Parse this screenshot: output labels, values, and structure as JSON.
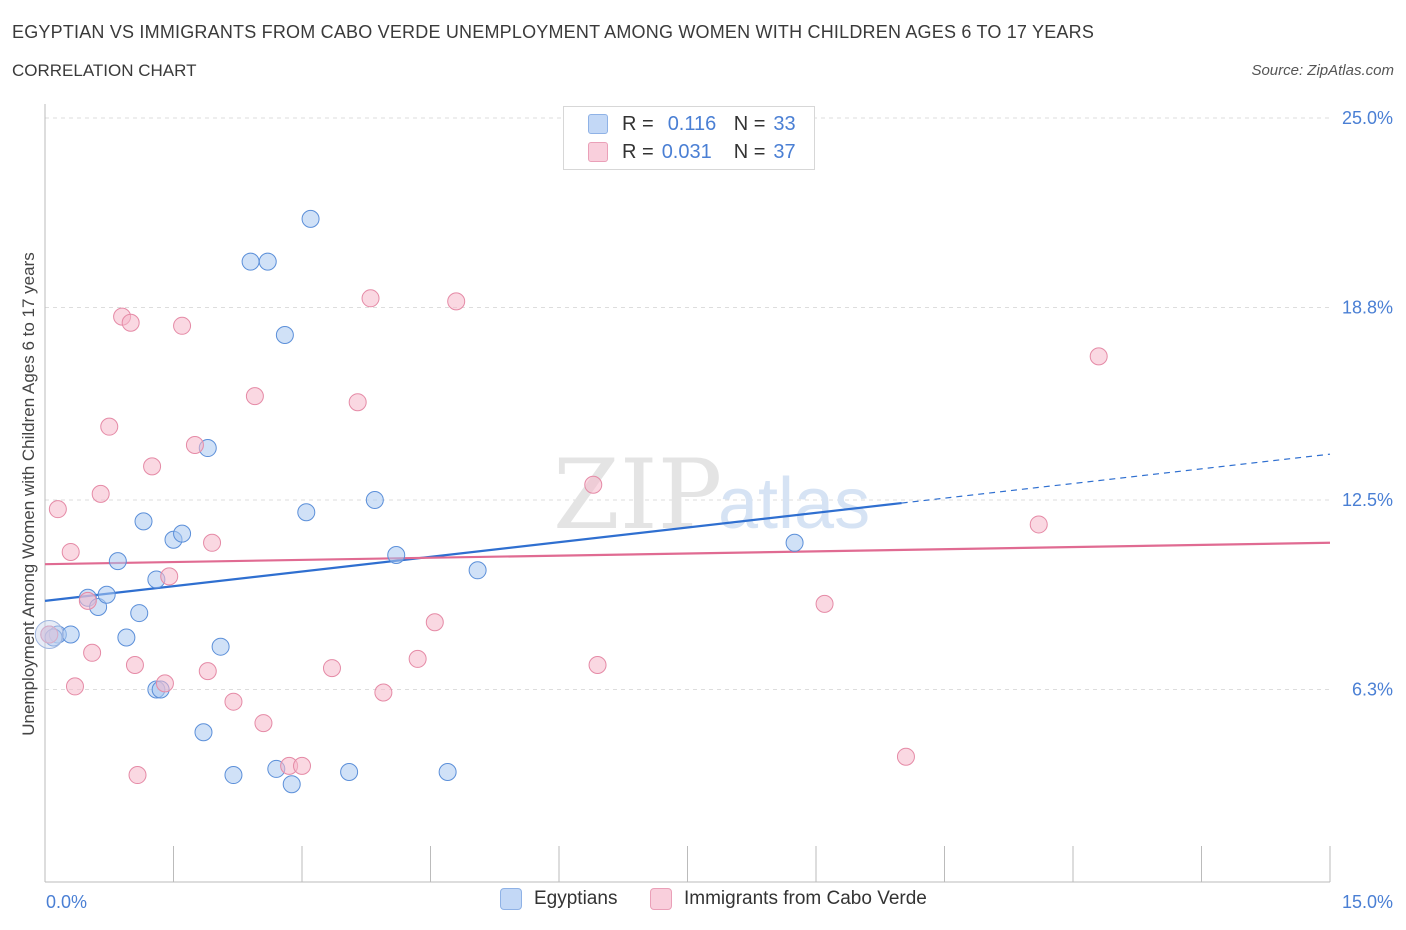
{
  "title": "EGYPTIAN VS IMMIGRANTS FROM CABO VERDE UNEMPLOYMENT AMONG WOMEN WITH CHILDREN AGES 6 TO 17 YEARS",
  "subtitle": "CORRELATION CHART",
  "source": "Source: ZipAtlas.com",
  "watermark": {
    "zip": "ZIP",
    "atlas": "atlas"
  },
  "legend": {
    "r_label": "R =",
    "n_label": "N =",
    "series": [
      {
        "r": "0.116",
        "n": "33",
        "color": "#aac8f0"
      },
      {
        "r": "0.031",
        "n": "37",
        "color": "#f5b8cb"
      }
    ]
  },
  "bottom_legend": [
    "Egyptians",
    "Immigrants from Cabo Verde"
  ],
  "chart_data": {
    "type": "scatter",
    "xlabel": "",
    "ylabel": "Unemployment Among Women with Children Ages 6 to 17 years",
    "xlim": [
      0,
      15
    ],
    "ylim": [
      0,
      25
    ],
    "x_tick_labels": [
      "0.0%",
      "15.0%"
    ],
    "y_ticks": [
      6.3,
      12.5,
      18.8,
      25.0
    ],
    "y_tick_labels": [
      "6.3%",
      "12.5%",
      "18.8%",
      "25.0%"
    ],
    "series": [
      {
        "name": "Egyptians",
        "color": "#aac8f0",
        "stroke": "#5b8fd9",
        "line_color": "#2f6fd0",
        "trend": {
          "x_start": 0,
          "y_start": 9.2,
          "x_solid_end": 10.0,
          "y_solid_end": 12.4,
          "x_end": 15,
          "y_end": 14.0
        },
        "points": [
          [
            0.05,
            8.1
          ],
          [
            0.15,
            8.1
          ],
          [
            0.3,
            8.1
          ],
          [
            0.5,
            9.3
          ],
          [
            0.62,
            9.0
          ],
          [
            0.72,
            9.4
          ],
          [
            0.85,
            10.5
          ],
          [
            0.95,
            8.0
          ],
          [
            1.1,
            8.8
          ],
          [
            1.15,
            11.8
          ],
          [
            1.3,
            9.9
          ],
          [
            1.3,
            6.3
          ],
          [
            1.35,
            6.3
          ],
          [
            1.5,
            11.2
          ],
          [
            1.6,
            11.4
          ],
          [
            1.85,
            4.9
          ],
          [
            1.9,
            14.2
          ],
          [
            2.05,
            7.7
          ],
          [
            2.2,
            3.5
          ],
          [
            2.4,
            20.3
          ],
          [
            2.6,
            20.3
          ],
          [
            2.7,
            3.7
          ],
          [
            2.8,
            17.9
          ],
          [
            2.88,
            3.2
          ],
          [
            3.05,
            12.1
          ],
          [
            3.1,
            21.7
          ],
          [
            3.55,
            3.6
          ],
          [
            3.85,
            12.5
          ],
          [
            4.1,
            10.7
          ],
          [
            4.7,
            3.6
          ],
          [
            5.05,
            10.2
          ],
          [
            8.75,
            11.1
          ],
          [
            0.1,
            8.0
          ]
        ]
      },
      {
        "name": "Immigrants from Cabo Verde",
        "color": "#f5b8cb",
        "stroke": "#e58aa6",
        "line_color": "#e06b92",
        "trend": {
          "x_start": 0,
          "y_start": 10.4,
          "x_solid_end": 15,
          "y_solid_end": 11.1,
          "x_end": 15,
          "y_end": 11.1
        },
        "points": [
          [
            0.05,
            8.1
          ],
          [
            0.15,
            12.2
          ],
          [
            0.3,
            10.8
          ],
          [
            0.35,
            6.4
          ],
          [
            0.5,
            9.2
          ],
          [
            0.55,
            7.5
          ],
          [
            0.65,
            12.7
          ],
          [
            0.75,
            14.9
          ],
          [
            0.9,
            18.5
          ],
          [
            1.0,
            18.3
          ],
          [
            1.05,
            7.1
          ],
          [
            1.08,
            3.5
          ],
          [
            1.25,
            13.6
          ],
          [
            1.4,
            6.5
          ],
          [
            1.45,
            10.0
          ],
          [
            1.6,
            18.2
          ],
          [
            1.75,
            14.3
          ],
          [
            1.9,
            6.9
          ],
          [
            1.95,
            11.1
          ],
          [
            2.2,
            5.9
          ],
          [
            2.45,
            15.9
          ],
          [
            2.55,
            5.2
          ],
          [
            2.85,
            3.8
          ],
          [
            3.0,
            3.8
          ],
          [
            3.35,
            7.0
          ],
          [
            3.65,
            15.7
          ],
          [
            3.8,
            19.1
          ],
          [
            3.95,
            6.2
          ],
          [
            4.35,
            7.3
          ],
          [
            4.55,
            8.5
          ],
          [
            4.8,
            19.0
          ],
          [
            6.4,
            13.0
          ],
          [
            6.45,
            7.1
          ],
          [
            9.1,
            9.1
          ],
          [
            10.05,
            4.1
          ],
          [
            11.6,
            11.7
          ],
          [
            12.3,
            17.2
          ]
        ]
      }
    ]
  }
}
